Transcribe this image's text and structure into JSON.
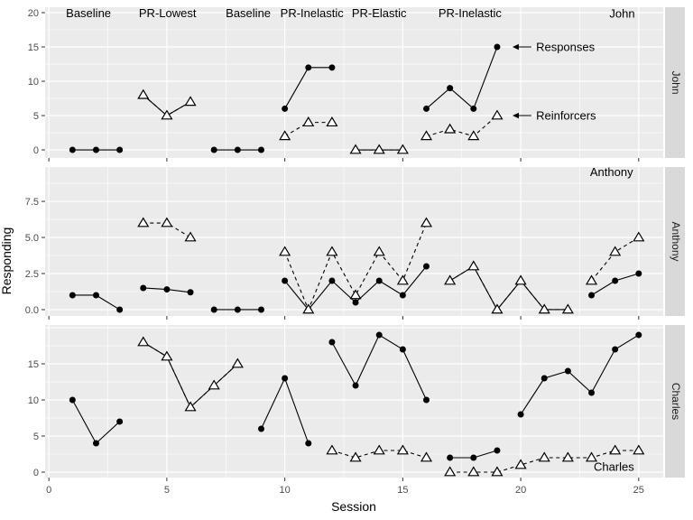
{
  "chart_data": {
    "type": "line",
    "title": "",
    "xlabel": "Session",
    "ylabel": "Responding",
    "xlim": [
      -0.16,
      26.04
    ],
    "x_ticks": [
      0,
      5,
      10,
      15,
      20,
      25
    ],
    "x_tick_labels": [
      "0",
      "5",
      "10",
      "15",
      "20",
      "25"
    ],
    "grid": "major-and-minor",
    "legend_position": "in-panel-annotations",
    "series": [
      {
        "name": "Responses",
        "marker": "filled-circle",
        "linetype": "solid"
      },
      {
        "name": "Reinforcers",
        "marker": "open-triangle",
        "linetype": "dashed"
      }
    ],
    "phase_labels": [
      {
        "label": "Baseline",
        "s": 1.68
      },
      {
        "label": "PR-Lowest",
        "s": 5.03
      },
      {
        "label": "Baseline",
        "s": 8.45
      },
      {
        "label": "PR-Inelastic",
        "s": 11.15
      },
      {
        "label": "PR-Elastic",
        "s": 14.0
      },
      {
        "label": "PR-Inelastic",
        "s": 17.85
      }
    ],
    "panels": [
      {
        "name": "John",
        "strip_label": "John",
        "ylim": [
          -1.18,
          20.79
        ],
        "y_ticks": [
          {
            "v": 0,
            "label": "0"
          },
          {
            "v": 5,
            "label": "5"
          },
          {
            "v": 10,
            "label": "10"
          },
          {
            "v": 15,
            "label": "15"
          },
          {
            "v": 20,
            "label": "20"
          }
        ],
        "annotations": [
          {
            "text": "John",
            "s": 24.3,
            "v": 19.85,
            "anchor": "middle"
          },
          {
            "text": "Responses",
            "s": 20.65,
            "v": 15.0,
            "anchor": "start",
            "arrow": {
              "from_s": 20.45,
              "to_s": 19.65
            }
          },
          {
            "text": "Reinforcers",
            "s": 20.65,
            "v": 5.0,
            "anchor": "start",
            "arrow": {
              "from_s": 20.45,
              "to_s": 19.65
            }
          }
        ],
        "responses_segments": [
          {
            "points": [
              [
                1,
                0
              ],
              [
                2,
                0
              ],
              [
                3,
                0
              ]
            ],
            "markers": true
          },
          {
            "points": [
              [
                4,
                8
              ],
              [
                5,
                5
              ],
              [
                6,
                7
              ]
            ],
            "markers": false
          },
          {
            "points": [
              [
                7,
                0
              ],
              [
                8,
                0
              ],
              [
                9,
                0
              ]
            ],
            "markers": true
          },
          {
            "points": [
              [
                10,
                6
              ],
              [
                11,
                12
              ],
              [
                12,
                12
              ]
            ],
            "markers": true
          },
          {
            "points": [
              [
                13,
                0
              ],
              [
                14,
                0
              ],
              [
                15,
                0
              ]
            ],
            "markers": false
          },
          {
            "points": [
              [
                16,
                6
              ],
              [
                17,
                9
              ],
              [
                18,
                6
              ],
              [
                19,
                15
              ]
            ],
            "markers": true
          }
        ],
        "reinforcers_segments": [
          {
            "points": [
              [
                4,
                8
              ],
              [
                5,
                5
              ],
              [
                6,
                7
              ]
            ],
            "markers": true
          },
          {
            "points": [
              [
                10,
                2
              ],
              [
                11,
                4
              ],
              [
                12,
                4
              ]
            ],
            "markers": true
          },
          {
            "points": [
              [
                13,
                0
              ],
              [
                14,
                0
              ],
              [
                15,
                0
              ]
            ],
            "markers": true
          },
          {
            "points": [
              [
                16,
                2
              ],
              [
                17,
                3
              ],
              [
                18,
                2
              ],
              [
                19,
                5
              ]
            ],
            "markers": true
          }
        ]
      },
      {
        "name": "Anthony",
        "strip_label": "Anthony",
        "ylim": [
          -0.44,
          9.88
        ],
        "y_ticks": [
          {
            "v": 0,
            "label": "0.0"
          },
          {
            "v": 2.5,
            "label": "2.5"
          },
          {
            "v": 5,
            "label": "5.0"
          },
          {
            "v": 7.5,
            "label": "7.5"
          }
        ],
        "annotations": [
          {
            "text": "Anthony",
            "s": 23.85,
            "v": 9.55,
            "anchor": "middle"
          }
        ],
        "responses_segments": [
          {
            "points": [
              [
                1,
                1
              ],
              [
                2,
                1
              ],
              [
                3,
                0
              ]
            ],
            "markers": true
          },
          {
            "points": [
              [
                4,
                1.5
              ],
              [
                5,
                1.4
              ],
              [
                6,
                1.2
              ]
            ],
            "markers": true
          },
          {
            "points": [
              [
                7,
                0
              ],
              [
                8,
                0
              ],
              [
                9,
                0
              ]
            ],
            "markers": true
          },
          {
            "points": [
              [
                10,
                2
              ],
              [
                11,
                0
              ],
              [
                12,
                2
              ],
              [
                13,
                0.5
              ],
              [
                14,
                2
              ],
              [
                15,
                1
              ],
              [
                16,
                3
              ]
            ],
            "markers": true
          },
          {
            "points": [
              [
                17,
                2
              ],
              [
                18,
                3
              ],
              [
                19,
                0
              ],
              [
                20,
                2
              ],
              [
                21,
                0
              ],
              [
                22,
                0
              ]
            ],
            "markers": false
          },
          {
            "points": [
              [
                23,
                1
              ],
              [
                24,
                2
              ],
              [
                25,
                2.5
              ]
            ],
            "markers": true
          }
        ],
        "reinforcers_segments": [
          {
            "points": [
              [
                4,
                6
              ],
              [
                5,
                6
              ],
              [
                6,
                5
              ]
            ],
            "markers": true
          },
          {
            "points": [
              [
                10,
                4
              ],
              [
                11,
                0
              ],
              [
                12,
                4
              ],
              [
                13,
                1
              ],
              [
                14,
                4
              ],
              [
                15,
                2
              ],
              [
                16,
                6
              ]
            ],
            "markers": true
          },
          {
            "points": [
              [
                17,
                2
              ],
              [
                18,
                3
              ],
              [
                19,
                0
              ],
              [
                20,
                2
              ],
              [
                21,
                0
              ],
              [
                22,
                0
              ]
            ],
            "markers": true
          },
          {
            "points": [
              [
                23,
                2
              ],
              [
                24,
                4
              ],
              [
                25,
                5
              ]
            ],
            "markers": true
          }
        ]
      },
      {
        "name": "Charles",
        "strip_label": "Charles",
        "ylim": [
          -0.75,
          20.38
        ],
        "y_ticks": [
          {
            "v": 0,
            "label": "0"
          },
          {
            "v": 5,
            "label": "5"
          },
          {
            "v": 10,
            "label": "10"
          },
          {
            "v": 15,
            "label": "15"
          }
        ],
        "annotations": [
          {
            "text": "Charles",
            "s": 23.95,
            "v": 0.75,
            "anchor": "middle"
          }
        ],
        "responses_segments": [
          {
            "points": [
              [
                1,
                10
              ],
              [
                2,
                4
              ],
              [
                3,
                7
              ]
            ],
            "markers": true
          },
          {
            "points": [
              [
                4,
                18
              ],
              [
                5,
                16
              ],
              [
                6,
                9
              ],
              [
                7,
                12
              ],
              [
                8,
                15
              ]
            ],
            "markers": false
          },
          {
            "points": [
              [
                9,
                6
              ],
              [
                10,
                13
              ],
              [
                11,
                4
              ]
            ],
            "markers": true
          },
          {
            "points": [
              [
                12,
                18
              ],
              [
                13,
                12
              ],
              [
                14,
                19
              ],
              [
                15,
                17
              ],
              [
                16,
                10
              ]
            ],
            "markers": true
          },
          {
            "points": [
              [
                17,
                2
              ],
              [
                18,
                2
              ],
              [
                19,
                3
              ]
            ],
            "markers": true
          },
          {
            "points": [
              [
                20,
                8
              ],
              [
                21,
                13
              ],
              [
                22,
                14
              ],
              [
                23,
                11
              ],
              [
                24,
                17
              ],
              [
                25,
                19
              ]
            ],
            "markers": true
          }
        ],
        "reinforcers_segments": [
          {
            "points": [
              [
                4,
                18
              ],
              [
                5,
                16
              ],
              [
                6,
                9
              ],
              [
                7,
                12
              ],
              [
                8,
                15
              ]
            ],
            "markers": true
          },
          {
            "points": [
              [
                12,
                3
              ],
              [
                13,
                2
              ],
              [
                14,
                3
              ],
              [
                15,
                3
              ],
              [
                16,
                2
              ]
            ],
            "markers": true
          },
          {
            "points": [
              [
                17,
                0
              ],
              [
                18,
                0
              ],
              [
                19,
                0
              ],
              [
                20,
                1
              ],
              [
                21,
                2
              ],
              [
                22,
                2
              ],
              [
                23,
                2
              ],
              [
                24,
                3
              ],
              [
                25,
                3
              ]
            ],
            "markers": true
          }
        ]
      }
    ],
    "colors": {
      "panel_bg": "#EBEBEB",
      "grid": "#FFFFFF",
      "strip_bg": "#D9D9D9",
      "strip_text": "#1A1A1A",
      "tick_label": "#4D4D4D",
      "tick_mark": "#333333",
      "data": "#000000"
    }
  }
}
